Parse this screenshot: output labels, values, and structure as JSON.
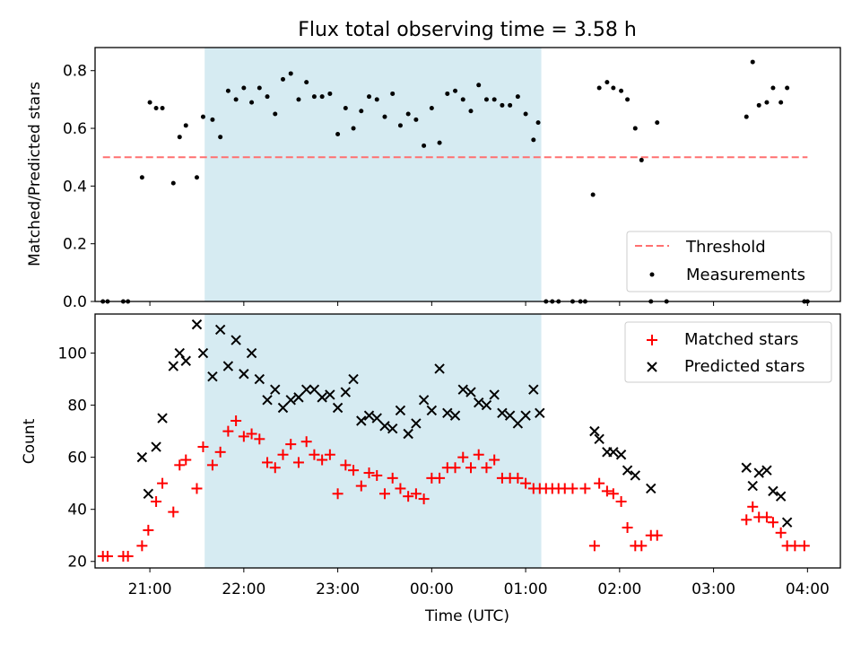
{
  "chart_data": [
    {
      "type": "scatter",
      "title": "Flux total observing time = 3.58 h",
      "xlabel": "",
      "ylabel": "Matched/Predicted stars",
      "ylim": [
        0,
        0.88
      ],
      "y_ticks": [
        "0.0",
        "0.2",
        "0.4",
        "0.6",
        "0.8"
      ],
      "x_range_hours": [
        "20:25",
        "04:21"
      ],
      "shaded_region": [
        "21:35",
        "01:10"
      ],
      "shaded_color": "#add8e6",
      "threshold": {
        "name": "Threshold",
        "value": 0.5,
        "x_range": [
          "20:30",
          "04:00"
        ],
        "color": "#ff7070"
      },
      "legend": {
        "position": "lower-right",
        "entries": [
          "Threshold",
          "Measurements"
        ]
      },
      "series": [
        {
          "name": "Measurements",
          "color": "#000000",
          "points": [
            [
              "20:30",
              0.0
            ],
            [
              "20:33",
              0.0
            ],
            [
              "20:43",
              0.0
            ],
            [
              "20:46",
              0.0
            ],
            [
              "20:55",
              0.43
            ],
            [
              "21:00",
              0.69
            ],
            [
              "21:04",
              0.67
            ],
            [
              "21:08",
              0.67
            ],
            [
              "21:15",
              0.41
            ],
            [
              "21:19",
              0.57
            ],
            [
              "21:23",
              0.61
            ],
            [
              "21:30",
              0.43
            ],
            [
              "21:34",
              0.64
            ],
            [
              "21:40",
              0.63
            ],
            [
              "21:45",
              0.57
            ],
            [
              "21:50",
              0.73
            ],
            [
              "21:55",
              0.7
            ],
            [
              "22:00",
              0.74
            ],
            [
              "22:05",
              0.69
            ],
            [
              "22:10",
              0.74
            ],
            [
              "22:15",
              0.71
            ],
            [
              "22:20",
              0.65
            ],
            [
              "22:25",
              0.77
            ],
            [
              "22:30",
              0.79
            ],
            [
              "22:35",
              0.7
            ],
            [
              "22:40",
              0.76
            ],
            [
              "22:45",
              0.71
            ],
            [
              "22:50",
              0.71
            ],
            [
              "22:55",
              0.72
            ],
            [
              "23:00",
              0.58
            ],
            [
              "23:05",
              0.67
            ],
            [
              "23:10",
              0.6
            ],
            [
              "23:15",
              0.66
            ],
            [
              "23:20",
              0.71
            ],
            [
              "23:25",
              0.7
            ],
            [
              "23:30",
              0.64
            ],
            [
              "23:35",
              0.72
            ],
            [
              "23:40",
              0.61
            ],
            [
              "23:45",
              0.65
            ],
            [
              "23:50",
              0.63
            ],
            [
              "23:55",
              0.54
            ],
            [
              "00:00",
              0.67
            ],
            [
              "00:05",
              0.55
            ],
            [
              "00:10",
              0.72
            ],
            [
              "00:15",
              0.73
            ],
            [
              "00:20",
              0.7
            ],
            [
              "00:25",
              0.66
            ],
            [
              "00:30",
              0.75
            ],
            [
              "00:35",
              0.7
            ],
            [
              "00:40",
              0.7
            ],
            [
              "00:45",
              0.68
            ],
            [
              "00:50",
              0.68
            ],
            [
              "00:55",
              0.71
            ],
            [
              "01:00",
              0.65
            ],
            [
              "01:05",
              0.56
            ],
            [
              "01:08",
              0.62
            ],
            [
              "01:13",
              0.0
            ],
            [
              "01:17",
              0.0
            ],
            [
              "01:21",
              0.0
            ],
            [
              "01:30",
              0.0
            ],
            [
              "01:35",
              0.0
            ],
            [
              "01:38",
              0.0
            ],
            [
              "01:43",
              0.37
            ],
            [
              "01:47",
              0.74
            ],
            [
              "01:52",
              0.76
            ],
            [
              "01:56",
              0.74
            ],
            [
              "02:01",
              0.73
            ],
            [
              "02:05",
              0.7
            ],
            [
              "02:10",
              0.6
            ],
            [
              "02:14",
              0.49
            ],
            [
              "02:20",
              0.0
            ],
            [
              "02:24",
              0.62
            ],
            [
              "02:30",
              0.0
            ],
            [
              "03:21",
              0.64
            ],
            [
              "03:25",
              0.83
            ],
            [
              "03:29",
              0.68
            ],
            [
              "03:34",
              0.69
            ],
            [
              "03:38",
              0.74
            ],
            [
              "03:43",
              0.69
            ],
            [
              "03:47",
              0.74
            ],
            [
              "03:58",
              0.0
            ],
            [
              "04:00",
              0.0
            ]
          ]
        }
      ]
    },
    {
      "type": "scatter",
      "title": "",
      "xlabel": "Time (UTC)",
      "ylabel": "Count",
      "ylim": [
        17.5,
        115
      ],
      "y_ticks": [
        "20",
        "40",
        "60",
        "80",
        "100"
      ],
      "x_ticks": [
        "21:00",
        "22:00",
        "23:00",
        "00:00",
        "01:00",
        "02:00",
        "03:00",
        "04:00"
      ],
      "x_range_hours": [
        "20:25",
        "04:21"
      ],
      "shaded_region": [
        "21:35",
        "01:10"
      ],
      "shaded_color": "#add8e6",
      "legend": {
        "position": "top-right",
        "entries": [
          "Matched stars",
          "Predicted stars"
        ]
      },
      "series": [
        {
          "name": "Matched stars",
          "marker": "+",
          "color": "#ff0000",
          "points": [
            [
              "20:30",
              22
            ],
            [
              "20:33",
              22
            ],
            [
              "20:43",
              22
            ],
            [
              "20:46",
              22
            ],
            [
              "20:55",
              26
            ],
            [
              "20:59",
              32
            ],
            [
              "21:04",
              43
            ],
            [
              "21:08",
              50
            ],
            [
              "21:15",
              39
            ],
            [
              "21:19",
              57
            ],
            [
              "21:23",
              59
            ],
            [
              "21:30",
              48
            ],
            [
              "21:34",
              64
            ],
            [
              "21:40",
              57
            ],
            [
              "21:45",
              62
            ],
            [
              "21:50",
              70
            ],
            [
              "21:55",
              74
            ],
            [
              "22:00",
              68
            ],
            [
              "22:05",
              69
            ],
            [
              "22:10",
              67
            ],
            [
              "22:15",
              58
            ],
            [
              "22:20",
              56
            ],
            [
              "22:25",
              61
            ],
            [
              "22:30",
              65
            ],
            [
              "22:35",
              58
            ],
            [
              "22:40",
              66
            ],
            [
              "22:45",
              61
            ],
            [
              "22:50",
              59
            ],
            [
              "22:55",
              61
            ],
            [
              "23:00",
              46
            ],
            [
              "23:05",
              57
            ],
            [
              "23:10",
              55
            ],
            [
              "23:15",
              49
            ],
            [
              "23:20",
              54
            ],
            [
              "23:25",
              53
            ],
            [
              "23:30",
              46
            ],
            [
              "23:35",
              52
            ],
            [
              "23:40",
              48
            ],
            [
              "23:45",
              45
            ],
            [
              "23:50",
              46
            ],
            [
              "23:55",
              44
            ],
            [
              "00:00",
              52
            ],
            [
              "00:05",
              52
            ],
            [
              "00:10",
              56
            ],
            [
              "00:15",
              56
            ],
            [
              "00:20",
              60
            ],
            [
              "00:25",
              56
            ],
            [
              "00:30",
              61
            ],
            [
              "00:35",
              56
            ],
            [
              "00:40",
              59
            ],
            [
              "00:45",
              52
            ],
            [
              "00:50",
              52
            ],
            [
              "00:55",
              52
            ],
            [
              "01:00",
              50
            ],
            [
              "01:05",
              48
            ],
            [
              "01:09",
              48
            ],
            [
              "01:13",
              48
            ],
            [
              "01:17",
              48
            ],
            [
              "01:21",
              48
            ],
            [
              "01:25",
              48
            ],
            [
              "01:30",
              48
            ],
            [
              "01:38",
              48
            ],
            [
              "01:44",
              26
            ],
            [
              "01:47",
              50
            ],
            [
              "01:52",
              47
            ],
            [
              "01:56",
              46
            ],
            [
              "02:01",
              43
            ],
            [
              "02:05",
              33
            ],
            [
              "02:10",
              26
            ],
            [
              "02:14",
              26
            ],
            [
              "02:20",
              30
            ],
            [
              "02:24",
              30
            ],
            [
              "03:21",
              36
            ],
            [
              "03:25",
              41
            ],
            [
              "03:29",
              37
            ],
            [
              "03:34",
              37
            ],
            [
              "03:38",
              35
            ],
            [
              "03:43",
              31
            ],
            [
              "03:47",
              26
            ],
            [
              "03:52",
              26
            ],
            [
              "03:58",
              26
            ]
          ]
        },
        {
          "name": "Predicted stars",
          "marker": "x",
          "color": "#000000",
          "points": [
            [
              "20:55",
              60
            ],
            [
              "20:59",
              46
            ],
            [
              "21:04",
              64
            ],
            [
              "21:08",
              75
            ],
            [
              "21:15",
              95
            ],
            [
              "21:19",
              100
            ],
            [
              "21:23",
              97
            ],
            [
              "21:30",
              111
            ],
            [
              "21:34",
              100
            ],
            [
              "21:40",
              91
            ],
            [
              "21:45",
              109
            ],
            [
              "21:50",
              95
            ],
            [
              "21:55",
              105
            ],
            [
              "22:00",
              92
            ],
            [
              "22:05",
              100
            ],
            [
              "22:10",
              90
            ],
            [
              "22:15",
              82
            ],
            [
              "22:20",
              86
            ],
            [
              "22:25",
              79
            ],
            [
              "22:30",
              82
            ],
            [
              "22:35",
              83
            ],
            [
              "22:40",
              86
            ],
            [
              "22:45",
              86
            ],
            [
              "22:50",
              83
            ],
            [
              "22:55",
              84
            ],
            [
              "23:00",
              79
            ],
            [
              "23:05",
              85
            ],
            [
              "23:10",
              90
            ],
            [
              "23:15",
              74
            ],
            [
              "23:20",
              76
            ],
            [
              "23:25",
              75
            ],
            [
              "23:30",
              72
            ],
            [
              "23:35",
              71
            ],
            [
              "23:40",
              78
            ],
            [
              "23:45",
              69
            ],
            [
              "23:50",
              73
            ],
            [
              "23:55",
              82
            ],
            [
              "00:00",
              78
            ],
            [
              "00:05",
              94
            ],
            [
              "00:10",
              77
            ],
            [
              "00:15",
              76
            ],
            [
              "00:20",
              86
            ],
            [
              "00:25",
              85
            ],
            [
              "00:30",
              81
            ],
            [
              "00:35",
              80
            ],
            [
              "00:40",
              84
            ],
            [
              "00:45",
              77
            ],
            [
              "00:50",
              76
            ],
            [
              "00:55",
              73
            ],
            [
              "01:00",
              76
            ],
            [
              "01:05",
              86
            ],
            [
              "01:09",
              77
            ],
            [
              "01:44",
              70
            ],
            [
              "01:47",
              67
            ],
            [
              "01:52",
              62
            ],
            [
              "01:56",
              62
            ],
            [
              "02:01",
              61
            ],
            [
              "02:05",
              55
            ],
            [
              "02:10",
              53
            ],
            [
              "02:20",
              48
            ],
            [
              "03:21",
              56
            ],
            [
              "03:25",
              49
            ],
            [
              "03:29",
              54
            ],
            [
              "03:34",
              55
            ],
            [
              "03:38",
              47
            ],
            [
              "03:43",
              45
            ],
            [
              "03:47",
              35
            ]
          ]
        }
      ]
    }
  ]
}
